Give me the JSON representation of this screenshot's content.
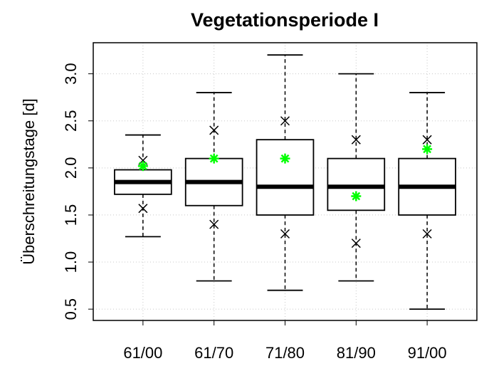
{
  "chart_data": {
    "type": "box",
    "title": "Vegetationsperiode I",
    "ylabel": "Überschreitungstage [d]",
    "categories": [
      "61/00",
      "61/70",
      "71/80",
      "81/90",
      "91/00"
    ],
    "min": [
      1.27,
      0.8,
      0.7,
      0.8,
      0.5
    ],
    "q1": [
      1.72,
      1.6,
      1.5,
      1.55,
      1.5
    ],
    "median": [
      1.85,
      1.85,
      1.8,
      1.8,
      1.8
    ],
    "q3": [
      1.98,
      2.1,
      2.3,
      2.1,
      2.1
    ],
    "max": [
      2.35,
      2.8,
      3.2,
      3.0,
      2.8
    ],
    "upper_marks": [
      2.08,
      2.4,
      2.5,
      2.3,
      2.3
    ],
    "lower_marks": [
      1.57,
      1.4,
      1.3,
      1.2,
      1.3
    ],
    "stars": [
      2.02,
      2.1,
      2.1,
      1.7,
      2.2
    ],
    "star_color": "#00ff00",
    "ylim": [
      0.38,
      3.33
    ],
    "yticks": [
      0.5,
      {
        "value": 1.0,
        "label": "1.0"
      },
      1.5,
      {
        "value": 2.0,
        "label": "2.0"
      },
      2.5,
      {
        "value": 3.0,
        "label": "3.0"
      }
    ],
    "grid": true
  }
}
